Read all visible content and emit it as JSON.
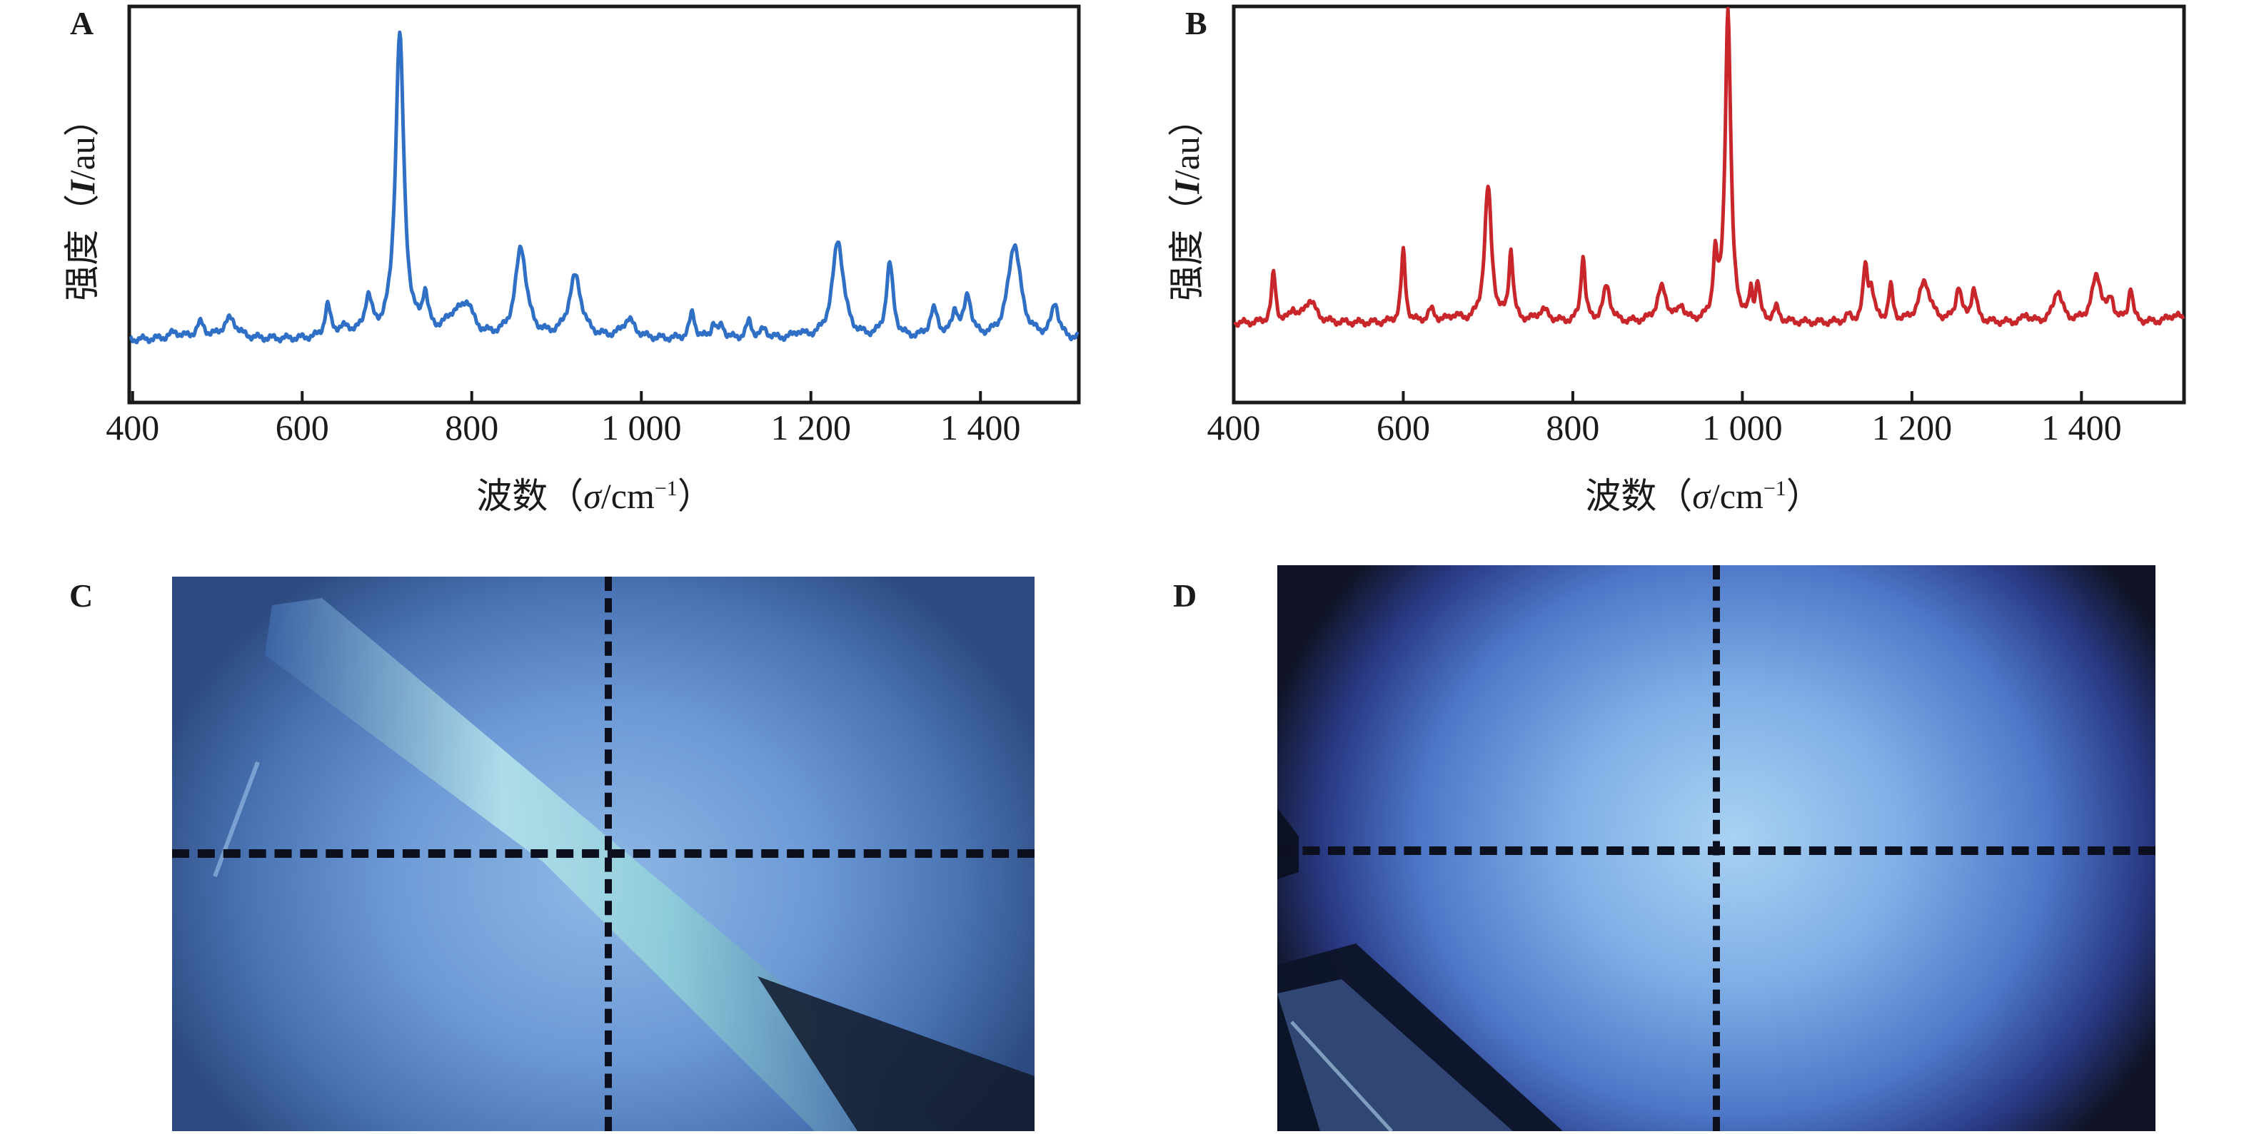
{
  "figure": {
    "panels": [
      {
        "id": "A",
        "label": "A",
        "type": "spectrum"
      },
      {
        "id": "B",
        "label": "B",
        "type": "spectrum"
      },
      {
        "id": "C",
        "label": "C",
        "type": "micrograph"
      },
      {
        "id": "D",
        "label": "D",
        "type": "micrograph"
      }
    ],
    "colors": {
      "spectrum_A": "#2f6fc6",
      "spectrum_B": "#c8262a",
      "axis": "#1a1a1a",
      "crosshair": "#0b0f1e"
    }
  },
  "chart_data": [
    {
      "panel": "A",
      "type": "line",
      "title": "",
      "xlabel": "波数（σ/cm⁻¹）",
      "xlabel_parts": {
        "prefix": "波数（",
        "symbol": "σ",
        "unit": "/cm",
        "exp": "−1",
        "suffix": "）"
      },
      "ylabel": "强度（I/au）",
      "ylabel_parts": {
        "prefix": "强度（",
        "symbol": "I",
        "unit": "/au",
        "suffix": "）"
      },
      "xlim": [
        396,
        1516
      ],
      "ylim": [
        0,
        1
      ],
      "xticks": [
        400,
        600,
        800,
        1000,
        1200,
        1400
      ],
      "xtick_labels": [
        "400",
        "600",
        "800",
        "1 000",
        "1 200",
        "1 400"
      ],
      "yticks": [],
      "grid": false,
      "legend": "none",
      "baseline": 0.158,
      "series": [
        {
          "name": "A",
          "color": "#2f6fc6",
          "peaks": [
            {
              "x": 450,
              "y": 0.174,
              "w": 9
            },
            {
              "x": 480,
              "y": 0.196,
              "w": 6
            },
            {
              "x": 515,
              "y": 0.209,
              "w": 10
            },
            {
              "x": 630,
              "y": 0.236,
              "w": 4
            },
            {
              "x": 650,
              "y": 0.18,
              "w": 12
            },
            {
              "x": 678,
              "y": 0.252,
              "w": 5
            },
            {
              "x": 715,
              "y": 0.924,
              "w": 6
            },
            {
              "x": 745,
              "y": 0.25,
              "w": 4
            },
            {
              "x": 780,
              "y": 0.21,
              "w": 14
            },
            {
              "x": 795,
              "y": 0.223,
              "w": 8
            },
            {
              "x": 858,
              "y": 0.385,
              "w": 8
            },
            {
              "x": 922,
              "y": 0.313,
              "w": 9
            },
            {
              "x": 985,
              "y": 0.205,
              "w": 9
            },
            {
              "x": 1060,
              "y": 0.223,
              "w": 4
            },
            {
              "x": 1085,
              "y": 0.196,
              "w": 3
            },
            {
              "x": 1095,
              "y": 0.19,
              "w": 4
            },
            {
              "x": 1127,
              "y": 0.2,
              "w": 4
            },
            {
              "x": 1145,
              "y": 0.18,
              "w": 5
            },
            {
              "x": 1185,
              "y": 0.172,
              "w": 6
            },
            {
              "x": 1232,
              "y": 0.406,
              "w": 8
            },
            {
              "x": 1293,
              "y": 0.344,
              "w": 5
            },
            {
              "x": 1345,
              "y": 0.228,
              "w": 6
            },
            {
              "x": 1370,
              "y": 0.223,
              "w": 4
            },
            {
              "x": 1385,
              "y": 0.263,
              "w": 5
            },
            {
              "x": 1440,
              "y": 0.399,
              "w": 9
            },
            {
              "x": 1488,
              "y": 0.245,
              "w": 5
            }
          ]
        }
      ]
    },
    {
      "panel": "B",
      "type": "line",
      "title": "",
      "xlabel": "波数（σ/cm⁻¹）",
      "xlabel_parts": {
        "prefix": "波数（",
        "symbol": "σ",
        "unit": "/cm",
        "exp": "−1",
        "suffix": "）"
      },
      "ylabel": "强度（I/au）",
      "ylabel_parts": {
        "prefix": "强度（",
        "symbol": "I",
        "unit": "/au",
        "suffix": "）"
      },
      "xlim": [
        400,
        1521
      ],
      "ylim": [
        0,
        1
      ],
      "xticks": [
        400,
        600,
        800,
        1000,
        1200,
        1400
      ],
      "xtick_labels": [
        "400",
        "600",
        "800",
        "1 000",
        "1 200",
        "1 400"
      ],
      "yticks": [],
      "grid": false,
      "legend": "none",
      "baseline": 0.2,
      "series": [
        {
          "name": "B",
          "color": "#c8262a",
          "peaks": [
            {
              "x": 447,
              "y": 0.324,
              "w": 3
            },
            {
              "x": 470,
              "y": 0.23,
              "w": 4
            },
            {
              "x": 490,
              "y": 0.257,
              "w": 8
            },
            {
              "x": 600,
              "y": 0.38,
              "w": 3
            },
            {
              "x": 633,
              "y": 0.23,
              "w": 5
            },
            {
              "x": 660,
              "y": 0.215,
              "w": 8
            },
            {
              "x": 700,
              "y": 0.539,
              "w": 5
            },
            {
              "x": 727,
              "y": 0.377,
              "w": 3
            },
            {
              "x": 765,
              "y": 0.23,
              "w": 8
            },
            {
              "x": 812,
              "y": 0.368,
              "w": 3
            },
            {
              "x": 840,
              "y": 0.292,
              "w": 5
            },
            {
              "x": 905,
              "y": 0.286,
              "w": 7
            },
            {
              "x": 928,
              "y": 0.238,
              "w": 4
            },
            {
              "x": 968,
              "y": 0.35,
              "w": 3
            },
            {
              "x": 983,
              "y": 0.987,
              "w": 4
            },
            {
              "x": 1010,
              "y": 0.27,
              "w": 2
            },
            {
              "x": 1018,
              "y": 0.295,
              "w": 3
            },
            {
              "x": 1040,
              "y": 0.234,
              "w": 4
            },
            {
              "x": 1125,
              "y": 0.215,
              "w": 4
            },
            {
              "x": 1145,
              "y": 0.331,
              "w": 3
            },
            {
              "x": 1152,
              "y": 0.28,
              "w": 4
            },
            {
              "x": 1175,
              "y": 0.288,
              "w": 3
            },
            {
              "x": 1215,
              "y": 0.304,
              "w": 8
            },
            {
              "x": 1255,
              "y": 0.286,
              "w": 4
            },
            {
              "x": 1273,
              "y": 0.281,
              "w": 4
            },
            {
              "x": 1335,
              "y": 0.22,
              "w": 4
            },
            {
              "x": 1372,
              "y": 0.281,
              "w": 6
            },
            {
              "x": 1418,
              "y": 0.317,
              "w": 7
            },
            {
              "x": 1435,
              "y": 0.25,
              "w": 4
            },
            {
              "x": 1458,
              "y": 0.288,
              "w": 3
            },
            {
              "x": 1510,
              "y": 0.22,
              "w": 10
            }
          ]
        }
      ]
    }
  ],
  "photos": {
    "C": {
      "description": "micrograph with diagonal capillary tip and dashed crosshair",
      "crosshair": true
    },
    "D": {
      "description": "micrograph with dark object lower-left and dashed crosshair",
      "crosshair": true
    }
  }
}
